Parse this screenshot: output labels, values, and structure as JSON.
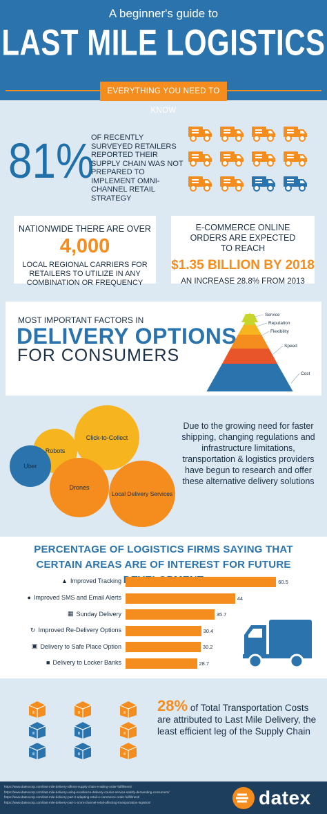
{
  "header": {
    "kicker": "A beginner's guide to",
    "title": "LAST MILE LOGISTICS",
    "tagline": "EVERYTHING YOU NEED TO KNOW"
  },
  "stat81": {
    "value": "81%",
    "text": "OF RECENTLY SURVEYED RETAILERS REPORTED THEIR SUPPLY CHAIN WAS NOT PREPARED TO IMPLEMENT OMNI-CHANNEL RETAIL STRATEGY",
    "truck_colors": [
      "orange",
      "orange",
      "orange",
      "orange",
      "orange",
      "orange",
      "orange",
      "orange",
      "orange",
      "orange",
      "blue",
      "blue"
    ]
  },
  "carriers": {
    "line1": "NATIONWIDE THERE ARE OVER",
    "value": "4,000",
    "line2": "LOCAL REGIONAL CARRIERS FOR RETAILERS TO UTILIZE IN ANY COMBINATION OR FREQUENCY"
  },
  "ecommerce": {
    "line1": "E-COMMERCE ONLINE ORDERS ARE EXPECTED TO REACH",
    "value": "$1.35 BILLION BY 2018",
    "line2": "AN INCREASE 28.8% FROM 2013"
  },
  "delivery_options": {
    "small": "MOST IMPORTANT FACTORS IN",
    "head1": "DELIVERY OPTIONS",
    "head2": "FOR CONSUMERS",
    "pyramid": [
      {
        "label": "Service",
        "color": "#c8d62b"
      },
      {
        "label": "Reputation",
        "color": "#f6b41f"
      },
      {
        "label": "Flexibility",
        "color": "#f48c1e"
      },
      {
        "label": "Speed",
        "color": "#e8552a"
      },
      {
        "label": "Cost",
        "color": "#2a73ac"
      }
    ]
  },
  "alternatives": {
    "circles": [
      "Click-to-Collect",
      "Robots",
      "Uber",
      "Drones",
      "Local Delivery Services"
    ],
    "text": "Due to the growing need for faster shipping, changing regulations and infrastructure limitations, transportation & logistics providers have begun to research and offer these alternative delivery solutions"
  },
  "chart_data": {
    "type": "bar",
    "title": "PERCENTAGE OF LOGISTICS FIRMS SAYING THAT CERTAIN AREAS ARE OF INTEREST FOR FUTURE DEVELOPMENT",
    "categories": [
      "Improved Tracking",
      "Improved SMS and Email Alerts",
      "Sunday Delivery",
      "Improved Re-Delivery Options",
      "Delivery to Safe Place Option",
      "Delivery to Locker Banks"
    ],
    "values": [
      60.5,
      44,
      35.7,
      30.4,
      30.2,
      28.7
    ],
    "value_labels": [
      "60.5",
      "44",
      "35.7",
      "30.4",
      "30.2",
      "28.7"
    ],
    "icons": [
      "tracking-icon",
      "chat-icon",
      "calendar-icon",
      "redelivery-icon",
      "safe-icon",
      "lock-icon"
    ],
    "orientation": "horizontal",
    "color": "#f48c1e"
  },
  "cost_stat": {
    "value": "28%",
    "text": "of Total Transportation Costs are attributed to Last Mile Delivery, the least efficient leg of the Supply Chain",
    "box_colors": [
      "orange",
      "orange",
      "orange",
      "blue",
      "blue",
      "orange",
      "blue",
      "blue",
      "orange"
    ]
  },
  "footer": {
    "links": [
      "https://www.datexcorp.com/last-mile-delivery-affects-supply-chain-e-tailing-order-fulfillment/",
      "https://www.datexcorp.com/last-mile-delivery-using-excellence-delivery-courier-service-satisfy-demanding-consumers/",
      "https://www.datexcorp.com/last-mile-delivery-part-2-adapting-retail-e-commerce-order-fulfillment/",
      "https://www.datexcorp.com/last-mile-delivery-part-1-omni-channel-retail-affecting-transportation-logistics/"
    ],
    "logo": "datex"
  }
}
